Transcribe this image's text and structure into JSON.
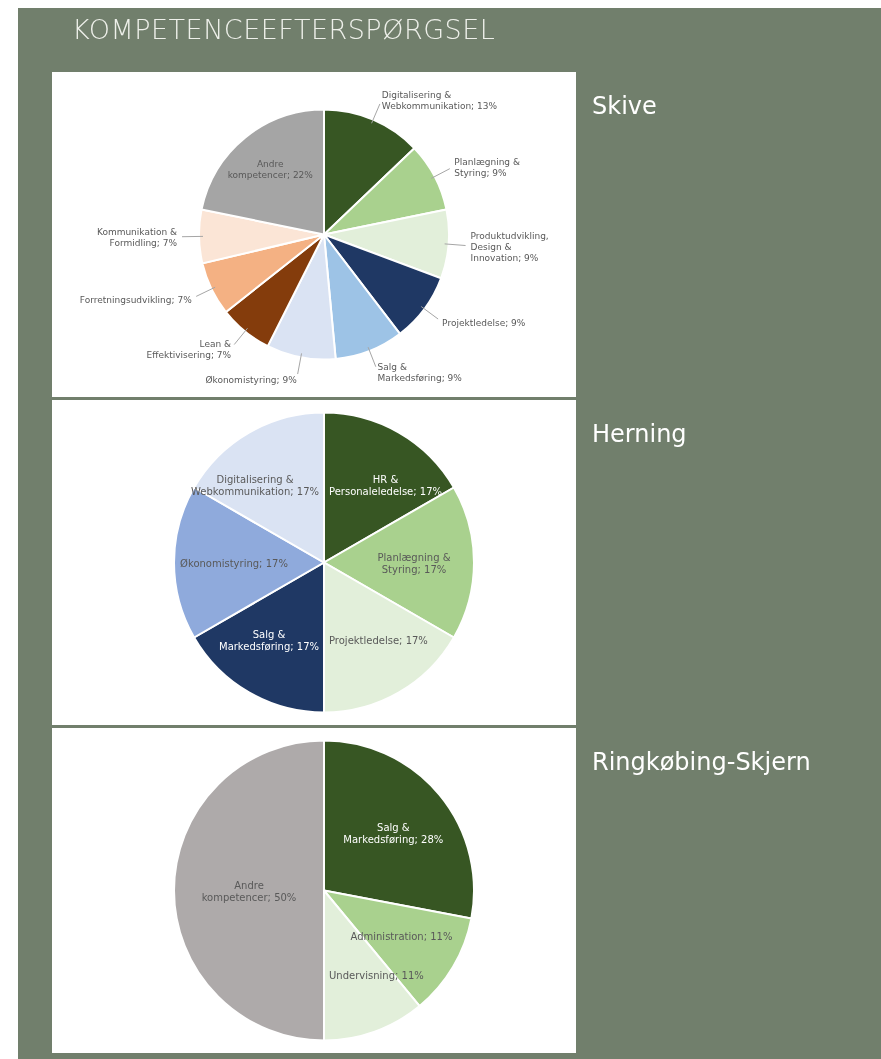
{
  "chart_data": [
    {
      "type": "pie",
      "title": "KOMPETENCEEFTERSPØRGSEL",
      "subtitle": "Skive",
      "categories": [
        "Digitalisering & Webkommunikation",
        "Planlægning & Styring",
        "Produktudvikling, Design & Innovation",
        "Projektledelse",
        "Salg & Markedsføring",
        "Økonomistyring",
        "Lean & Effektivisering",
        "Forretningsudvikling",
        "Kommunikation & Formidling",
        "Andre kompetencer"
      ],
      "values": [
        13,
        9,
        9,
        9,
        9,
        9,
        7,
        7,
        7,
        22
      ],
      "value_labels": [
        "13%",
        "9%",
        "9%",
        "9%",
        "9%",
        "9%",
        "7%",
        "7%",
        "7%",
        "22%"
      ],
      "colors": [
        "#375623",
        "#a9d18e",
        "#e2efda",
        "#1f3864",
        "#9dc3e6",
        "#dae3f3",
        "#843c0c",
        "#f4b183",
        "#fbe5d6",
        "#a5a5a5"
      ]
    },
    {
      "type": "pie",
      "subtitle": "Herning",
      "categories": [
        "HR & Personaleledelse",
        "Planlægning & Styring",
        "Projektledelse",
        "Salg & Markedsføring",
        "Økonomistyring",
        "Digitalisering & Webkommunikation"
      ],
      "values": [
        17,
        17,
        17,
        17,
        17,
        17
      ],
      "value_labels": [
        "17%",
        "17%",
        "17%",
        "17%",
        "17%",
        "17%"
      ],
      "colors": [
        "#375623",
        "#a9d18e",
        "#e2efda",
        "#1f3864",
        "#8faadc",
        "#dae3f3"
      ]
    },
    {
      "type": "pie",
      "subtitle": "Ringkøbing-Skjern",
      "categories": [
        "Salg & Markedsføring",
        "Administration",
        "Undervisning",
        "Andre kompetencer"
      ],
      "values": [
        28,
        11,
        11,
        50
      ],
      "value_labels": [
        "28%",
        "11%",
        "11%",
        "50%"
      ],
      "colors": [
        "#375623",
        "#a9d18e",
        "#e2efda",
        "#aeaaaa"
      ]
    }
  ]
}
